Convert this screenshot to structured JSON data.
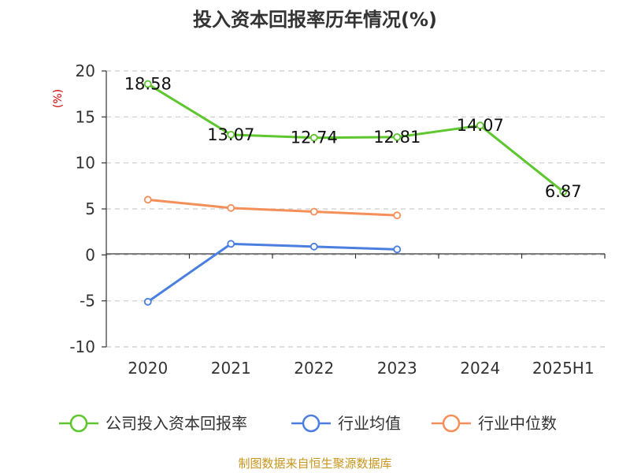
{
  "chart_data": {
    "type": "line",
    "title": "投入资本回报率历年情况(%)",
    "ylabel": "(%)",
    "xlabel": "",
    "categories": [
      "2020",
      "2021",
      "2022",
      "2023",
      "2024",
      "2025H1"
    ],
    "ylim": [
      -10,
      20
    ],
    "yticks": [
      20,
      15,
      10,
      5,
      0,
      -5,
      -10
    ],
    "grid": true,
    "legend_position": "bottom",
    "series": [
      {
        "name": "公司投入资本回报率",
        "color": "#5ec62e",
        "values": [
          18.58,
          13.07,
          12.74,
          12.81,
          14.07,
          6.87
        ],
        "labels": [
          "18.58",
          "13.07",
          "12.74",
          "12.81",
          "14.07",
          "6.87"
        ]
      },
      {
        "name": "行业均值",
        "color": "#4a7fe0",
        "values": [
          -5.1,
          1.2,
          0.9,
          0.6,
          null,
          null
        ]
      },
      {
        "name": "行业中位数",
        "color": "#f58f5a",
        "values": [
          6.0,
          5.1,
          4.7,
          4.3,
          null,
          null
        ]
      }
    ],
    "source": "制图数据来自恒生聚源数据库"
  }
}
